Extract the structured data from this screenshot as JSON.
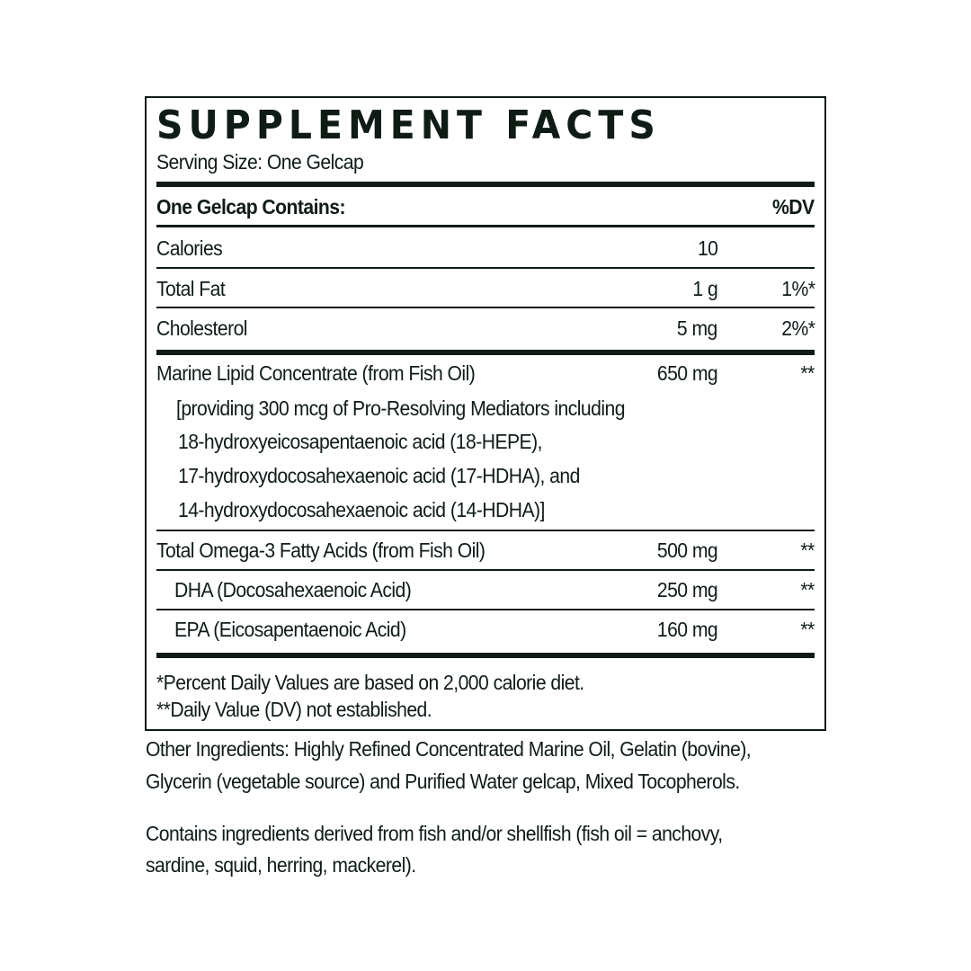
{
  "panel": {
    "title": "SUPPLEMENT FACTS",
    "serving_size": "Serving Size: One Gelcap",
    "header": {
      "left": "One Gelcap Contains:",
      "right": "%DV"
    },
    "rows": [
      {
        "name": "Calories",
        "amount": "10",
        "dv": ""
      },
      {
        "name": "Total Fat",
        "amount": "1 g",
        "dv": "1%*"
      },
      {
        "name": "Cholesterol",
        "amount": "5 mg",
        "dv": "2%*"
      },
      {
        "name": "Marine Lipid Concentrate (from Fish Oil)",
        "amount": "650 mg",
        "dv": "**"
      },
      {
        "name": "Total Omega-3 Fatty Acids (from Fish Oil)",
        "amount": "500 mg",
        "dv": "**"
      },
      {
        "name": "DHA (Docosahexaenoic Acid)",
        "amount": "250 mg",
        "dv": "**"
      },
      {
        "name": "EPA (Eicosapentaenoic Acid)",
        "amount": "160 mg",
        "dv": "**"
      }
    ],
    "marine_detail": [
      "[providing 300 mcg of Pro-Resolving Mediators including",
      "18-hydroxyeicosapentaenoic acid (18-HEPE),",
      "17-hydroxydocosahexaenoic acid (17-HDHA), and",
      "14-hydroxydocosahexaenoic acid (14-HDHA)]"
    ],
    "footnotes": [
      "*Percent Daily Values are based on 2,000 calorie diet.",
      "**Daily Value (DV) not established."
    ]
  },
  "other_ingredients": [
    "Other Ingredients: Highly Refined Concentrated Marine Oil, Gelatin (bovine),",
    "Glycerin (vegetable source) and Purified Water gelcap, Mixed Tocopherols."
  ],
  "allergen": [
    "Contains ingredients derived from fish and/or shellfish (fish oil = anchovy,",
    "sardine, squid, herring, mackerel)."
  ],
  "colors": {
    "ink": "#0f1c15"
  }
}
